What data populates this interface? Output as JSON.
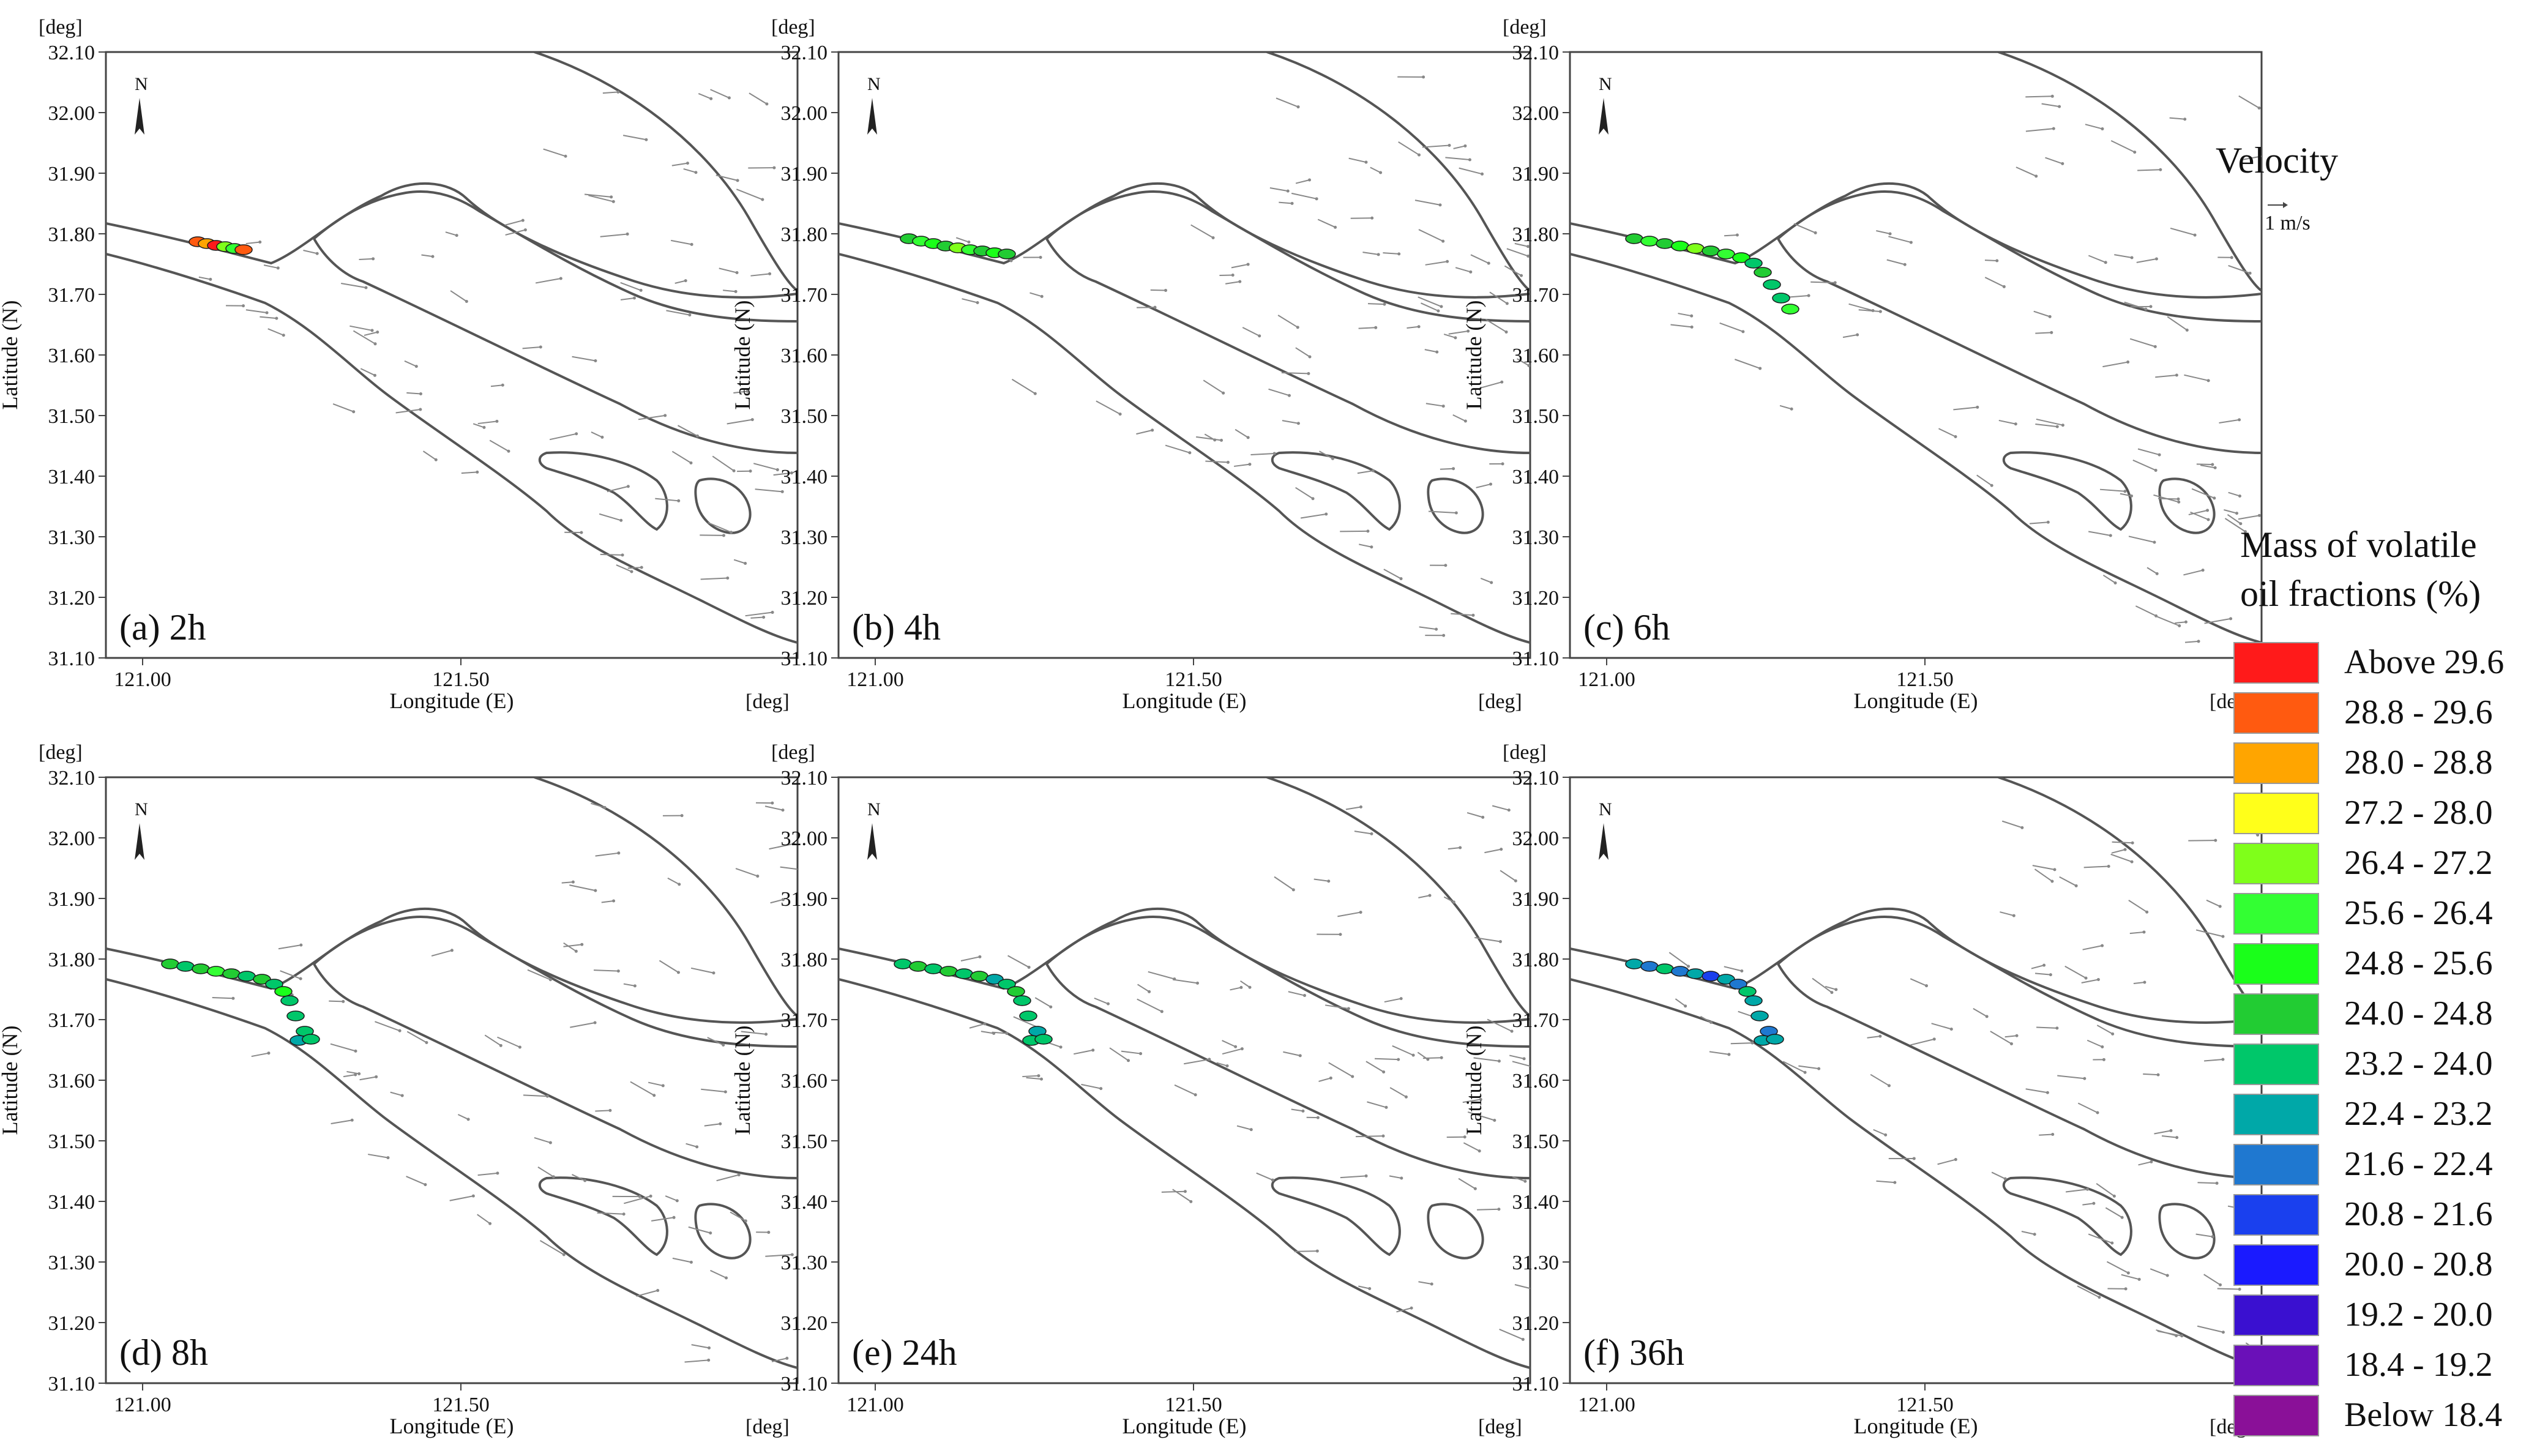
{
  "panels": [
    {
      "id": "a",
      "label": "(a) 2h"
    },
    {
      "id": "b",
      "label": "(b) 4h"
    },
    {
      "id": "c",
      "label": "(c) 6h"
    },
    {
      "id": "d",
      "label": "(d) 8h"
    },
    {
      "id": "e",
      "label": "(e) 24h"
    },
    {
      "id": "f",
      "label": "(f) 36h"
    }
  ],
  "axes": {
    "unit": "[deg]",
    "xlabel": "Longitude (E)",
    "ylabel": "Latitude (N)",
    "lat_ticks": [
      "32.10",
      "32.00",
      "31.90",
      "31.80",
      "31.70",
      "31.60",
      "31.50",
      "31.40",
      "31.30",
      "31.20",
      "31.10"
    ],
    "lon_ticks": [
      "121.00",
      "121.50"
    ],
    "lat_range": [
      31.1,
      32.1
    ],
    "lon_range": [
      120.95,
      122.0
    ]
  },
  "north_label": "N",
  "velocity_legend": {
    "title": "Velocity",
    "scale": "1 m/s"
  },
  "mass_legend": {
    "title_line1": "Mass of volatile",
    "title_line2": "oil fractions (%)",
    "items": [
      {
        "label": "Above 29.6",
        "color": "#ff1a1a"
      },
      {
        "label": "28.8 - 29.6",
        "color": "#ff5a10"
      },
      {
        "label": "28.0 - 28.8",
        "color": "#ffa500"
      },
      {
        "label": "27.2 - 28.0",
        "color": "#ffff1a"
      },
      {
        "label": "26.4 - 27.2",
        "color": "#7fff1a"
      },
      {
        "label": "25.6 - 26.4",
        "color": "#33ff33"
      },
      {
        "label": "24.8 - 25.6",
        "color": "#1aff1a"
      },
      {
        "label": "24.0 - 24.8",
        "color": "#22cc33"
      },
      {
        "label": "23.2 - 24.0",
        "color": "#00c76a"
      },
      {
        "label": "22.4 - 23.2",
        "color": "#00a8a8"
      },
      {
        "label": "21.6 - 22.4",
        "color": "#1f78d0"
      },
      {
        "label": "20.8 - 21.6",
        "color": "#1a40ee"
      },
      {
        "label": "20.0 - 20.8",
        "color": "#1a1aff"
      },
      {
        "label": "19.2 - 20.0",
        "color": "#3a10d0"
      },
      {
        "label": "18.4 - 19.2",
        "color": "#6a10b8"
      },
      {
        "label": "Below 18.4",
        "color": "#8a1098"
      }
    ]
  }
}
